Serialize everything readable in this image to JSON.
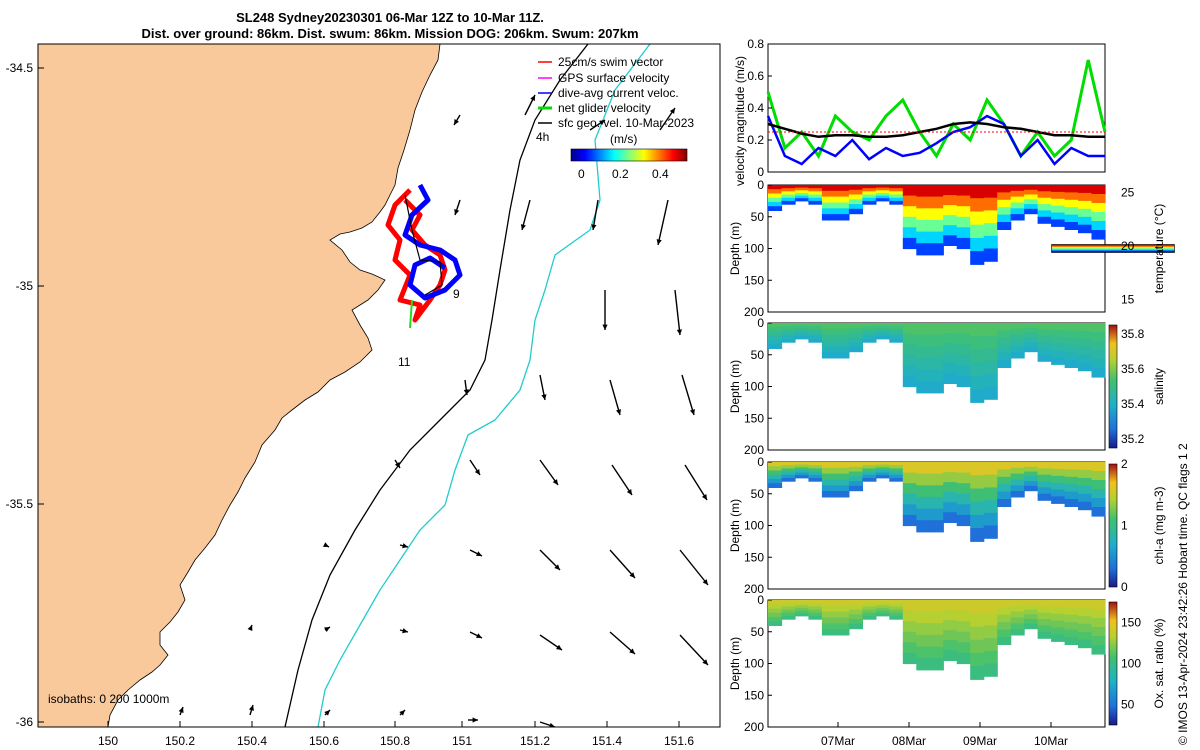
{
  "figure": {
    "title_line1": "SL248 Sydney20230301 06-Mar 12Z to 10-Mar 11Z.",
    "title_line2": "Dist. over ground: 86km. Dist. swum: 86km. Mission DOG: 206km. Swum: 207km",
    "credit": "© IMOS 13-Apr-2024 23:42:26 Hobart time. QC flags 1  2"
  },
  "map": {
    "x_ticks": [
      "150",
      "150.2",
      "150.4",
      "150.6",
      "150.8",
      "151",
      "151.2",
      "151.4",
      "151.6"
    ],
    "y_ticks": [
      "-34.5",
      "-35",
      "-35.5",
      "-36"
    ],
    "legend": [
      {
        "label": "25cm/s swim vector",
        "color": "#ff0000"
      },
      {
        "label": "GPS surface velocity",
        "color": "#ff00ff"
      },
      {
        "label": "dive-avg current veloc.",
        "color": "#0000ff"
      },
      {
        "label": "net glider velocity",
        "color": "#00dd00"
      },
      {
        "label": "sfc geo. vel. 10-Mar-2023",
        "color": "#000000"
      }
    ],
    "colorbar_label": "(m/s)",
    "colorbar_ticks": [
      "0",
      "0.2",
      "0.4"
    ],
    "annotations": [
      "4h",
      "9",
      "11"
    ],
    "isobaths_label": "isobaths: 0   200  1000m",
    "colors": {
      "land": "#f9c89b",
      "isobath_200": "#000000",
      "isobath_1000": "#22cccc",
      "track_red": "#ff0000",
      "track_blue": "#0000ff"
    }
  },
  "chart_data": [
    {
      "type": "line",
      "title": "",
      "ylabel": "velocity magnitude (m/s)",
      "ylim": [
        0,
        0.8
      ],
      "y_ticks": [
        "0.8",
        "0.6",
        "0.4",
        "0.2",
        "0"
      ],
      "xlim": [
        6.5,
        10.5
      ],
      "x": [
        6.5,
        6.7,
        6.9,
        7.1,
        7.3,
        7.5,
        7.7,
        7.9,
        8.1,
        8.3,
        8.5,
        8.7,
        8.9,
        9.1,
        9.3,
        9.5,
        9.7,
        9.9,
        10.1,
        10.3,
        10.5
      ],
      "series": [
        {
          "name": "net glider velocity",
          "color": "#00dd00",
          "values": [
            0.5,
            0.15,
            0.25,
            0.1,
            0.35,
            0.25,
            0.2,
            0.35,
            0.45,
            0.25,
            0.1,
            0.3,
            0.2,
            0.45,
            0.3,
            0.1,
            0.25,
            0.1,
            0.2,
            0.7,
            0.25
          ]
        },
        {
          "name": "dive-avg current veloc.",
          "color": "#0000ff",
          "values": [
            0.35,
            0.1,
            0.05,
            0.15,
            0.1,
            0.2,
            0.08,
            0.15,
            0.1,
            0.12,
            0.18,
            0.25,
            0.28,
            0.35,
            0.3,
            0.1,
            0.2,
            0.05,
            0.15,
            0.1,
            0.1
          ]
        },
        {
          "name": "sfc geo. vel.",
          "color": "#000000",
          "values": [
            0.3,
            0.27,
            0.24,
            0.22,
            0.23,
            0.23,
            0.22,
            0.22,
            0.23,
            0.25,
            0.27,
            0.3,
            0.31,
            0.3,
            0.28,
            0.27,
            0.25,
            0.23,
            0.23,
            0.22,
            0.22
          ]
        },
        {
          "name": "25cm/s swim vector",
          "color": "#ff0000",
          "values": [
            0.25,
            0.25,
            0.25,
            0.25,
            0.25,
            0.25,
            0.25,
            0.25,
            0.25,
            0.25,
            0.25,
            0.25,
            0.25,
            0.25,
            0.25,
            0.25,
            0.25,
            0.25,
            0.25,
            0.25,
            0.25
          ]
        }
      ]
    },
    {
      "type": "heatmap",
      "title": "",
      "ylabel": "Depth (m)",
      "ylim": [
        200,
        0
      ],
      "y_ticks": [
        "0",
        "50",
        "100",
        "150",
        "200"
      ],
      "colorbar_label": "temperature (°C)",
      "colorbar_ticks": [
        "25",
        "20",
        "15"
      ],
      "clim": [
        14,
        25.5
      ],
      "surface_value": 24.5,
      "deep_value": 14.5
    },
    {
      "type": "heatmap",
      "title": "",
      "ylabel": "Depth (m)",
      "ylim": [
        200,
        0
      ],
      "y_ticks": [
        "0",
        "50",
        "100",
        "150",
        "200"
      ],
      "colorbar_label": "salinity",
      "colorbar_ticks": [
        "35.8",
        "35.6",
        "35.4",
        "35.2"
      ],
      "clim": [
        35.15,
        35.85
      ],
      "surface_value": 35.55,
      "deep_value": 35.35
    },
    {
      "type": "heatmap",
      "title": "",
      "ylabel": "Depth (m)",
      "ylim": [
        200,
        0
      ],
      "y_ticks": [
        "0",
        "50",
        "100",
        "150",
        "200"
      ],
      "colorbar_label": "chl-a (mg m-3)",
      "colorbar_ticks": [
        "2",
        "1",
        "0"
      ],
      "clim": [
        0,
        2
      ],
      "surface_value": 1.6,
      "deep_value": 0.05
    },
    {
      "type": "heatmap",
      "title": "",
      "ylabel": "Depth (m)",
      "ylim": [
        200,
        0
      ],
      "y_ticks": [
        "0",
        "50",
        "100",
        "150",
        "200"
      ],
      "colorbar_label": "Ox. sat. ratio (%)",
      "colorbar_ticks": [
        "150",
        "100",
        "50"
      ],
      "clim": [
        25,
        175
      ],
      "surface_value": 140,
      "deep_value": 95
    }
  ],
  "time_axis": {
    "ticks": [
      "07Mar",
      "08Mar",
      "09Mar",
      "10Mar"
    ]
  }
}
